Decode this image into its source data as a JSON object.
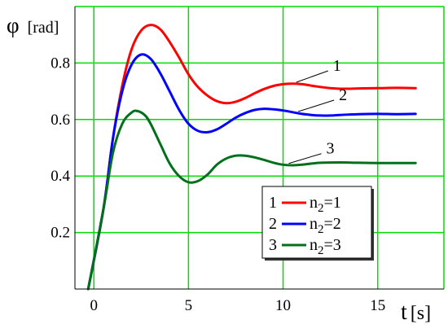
{
  "chart_data": {
    "type": "line",
    "ylabel_symbol": "φ",
    "ylabel_unit": "[rad]",
    "xlabel_symbol": "t",
    "xlabel_unit": "[s]",
    "xlim": [
      -1,
      18.5
    ],
    "ylim": [
      0,
      1.0
    ],
    "x_ticks": [
      0,
      5,
      10,
      15
    ],
    "y_ticks": [
      0.2,
      0.4,
      0.6,
      0.8
    ],
    "x_tick_labels": [
      "0",
      "5",
      "10",
      "15"
    ],
    "y_tick_labels": [
      "0.2",
      "0.4",
      "0.6",
      "0.8"
    ],
    "grid": true,
    "grid_color": "#00dd00",
    "legend_position": "bottom-right",
    "series": [
      {
        "name": "n2=1",
        "legend_number": "1",
        "legend_label": "n",
        "legend_sub": "2",
        "legend_value": "=1",
        "annotation": "1",
        "color": "#ff0000",
        "x": [
          -0.3,
          0.5,
          1.0,
          1.5,
          2.0,
          2.5,
          3.0,
          3.5,
          4.0,
          4.5,
          5.0,
          5.5,
          6.0,
          6.5,
          7.0,
          7.5,
          8.0,
          8.5,
          9.0,
          9.5,
          10.0,
          10.5,
          11.0,
          11.5,
          12.0,
          12.5,
          13.0,
          13.5,
          14.0,
          15.0,
          16.0,
          17.0
        ],
        "y": [
          0.0,
          0.28,
          0.53,
          0.72,
          0.85,
          0.915,
          0.935,
          0.92,
          0.875,
          0.82,
          0.76,
          0.715,
          0.685,
          0.665,
          0.658,
          0.663,
          0.676,
          0.693,
          0.708,
          0.719,
          0.725,
          0.727,
          0.725,
          0.72,
          0.715,
          0.711,
          0.709,
          0.709,
          0.71,
          0.711,
          0.712,
          0.711
        ]
      },
      {
        "name": "n2=2",
        "legend_number": "2",
        "legend_label": "n",
        "legend_sub": "2",
        "legend_value": "=2",
        "annotation": "2",
        "color": "#0000ff",
        "x": [
          -0.3,
          0.5,
          1.0,
          1.5,
          2.0,
          2.5,
          3.0,
          3.5,
          4.0,
          4.5,
          5.0,
          5.5,
          6.0,
          6.5,
          7.0,
          7.5,
          8.0,
          8.5,
          9.0,
          9.5,
          10.0,
          10.5,
          11.0,
          11.5,
          12.0,
          12.5,
          13.0,
          14.0,
          15.0,
          16.0,
          17.0
        ],
        "y": [
          0.0,
          0.28,
          0.53,
          0.7,
          0.795,
          0.83,
          0.815,
          0.765,
          0.7,
          0.635,
          0.585,
          0.56,
          0.555,
          0.565,
          0.585,
          0.607,
          0.623,
          0.634,
          0.638,
          0.636,
          0.632,
          0.626,
          0.62,
          0.616,
          0.614,
          0.614,
          0.616,
          0.619,
          0.62,
          0.619,
          0.62
        ]
      },
      {
        "name": "n2=3",
        "legend_number": "3",
        "legend_label": "n",
        "legend_sub": "2",
        "legend_value": "=3",
        "annotation": "3",
        "color": "#00701a",
        "x": [
          -0.3,
          0.5,
          1.0,
          1.5,
          2.0,
          2.3,
          2.7,
          3.0,
          3.5,
          4.0,
          4.5,
          5.0,
          5.5,
          6.0,
          6.5,
          7.0,
          7.5,
          8.0,
          8.5,
          9.0,
          9.5,
          10.0,
          10.5,
          11.0,
          11.5,
          12.0,
          13.0,
          14.0,
          15.0,
          16.0,
          17.0
        ],
        "y": [
          0.0,
          0.28,
          0.48,
          0.585,
          0.625,
          0.63,
          0.615,
          0.585,
          0.515,
          0.445,
          0.4,
          0.378,
          0.382,
          0.405,
          0.44,
          0.462,
          0.472,
          0.472,
          0.466,
          0.457,
          0.447,
          0.44,
          0.438,
          0.44,
          0.444,
          0.447,
          0.448,
          0.447,
          0.446,
          0.446,
          0.446
        ]
      }
    ]
  }
}
